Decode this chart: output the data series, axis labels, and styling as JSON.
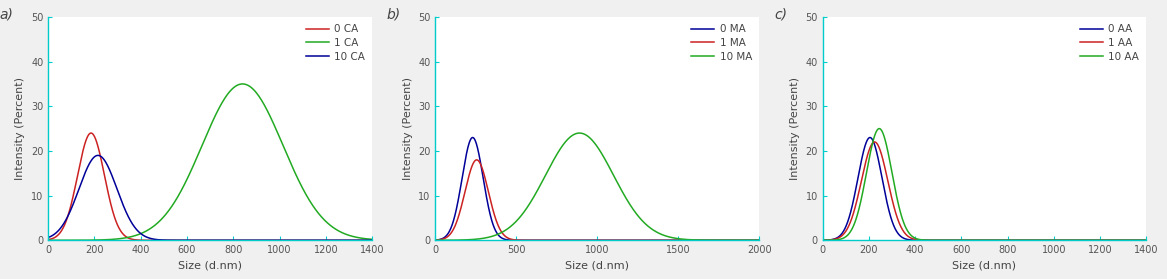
{
  "panels": [
    {
      "label": "a)",
      "xlim": [
        0,
        1400
      ],
      "xticks": [
        0,
        200,
        400,
        600,
        800,
        1000,
        1200,
        1400
      ],
      "xlabel": "Size (d.nm)",
      "ylabel": "Intensity (Percent)",
      "ylim": [
        0,
        50
      ],
      "yticks": [
        0,
        10,
        20,
        30,
        40,
        50
      ],
      "legend_labels": [
        "0 CA",
        "1 CA",
        "10 CA"
      ],
      "curves": [
        {
          "color": "#cc2222",
          "peak": 185,
          "sigma": 58,
          "amplitude": 24
        },
        {
          "color": "#22aa22",
          "peak": 840,
          "sigma": 175,
          "amplitude": 35
        },
        {
          "color": "#000099",
          "peak": 215,
          "sigma": 82,
          "amplitude": 19
        }
      ]
    },
    {
      "label": "b)",
      "xlim": [
        0,
        2000
      ],
      "xticks": [
        0,
        500,
        1000,
        1500,
        2000
      ],
      "xlabel": "Size (d.nm)",
      "ylabel": "Intensity (Percent)",
      "ylim": [
        0,
        50
      ],
      "yticks": [
        0,
        10,
        20,
        30,
        40,
        50
      ],
      "legend_labels": [
        "0 MA",
        "1 MA",
        "10 MA"
      ],
      "curves": [
        {
          "color": "#000099",
          "peak": 230,
          "sigma": 65,
          "amplitude": 23
        },
        {
          "color": "#cc2222",
          "peak": 255,
          "sigma": 72,
          "amplitude": 18
        },
        {
          "color": "#22aa22",
          "peak": 890,
          "sigma": 210,
          "amplitude": 24
        }
      ]
    },
    {
      "label": "c)",
      "xlim": [
        0,
        1400
      ],
      "xticks": [
        0,
        200,
        400,
        600,
        800,
        1000,
        1200,
        1400
      ],
      "xlabel": "Size (d.nm)",
      "ylabel": "Intensity (Percent)",
      "ylim": [
        0,
        50
      ],
      "yticks": [
        0,
        10,
        20,
        30,
        40,
        50
      ],
      "legend_labels": [
        "0 AA",
        "1 AA",
        "10 AA"
      ],
      "curves": [
        {
          "color": "#000099",
          "peak": 205,
          "sigma": 52,
          "amplitude": 23
        },
        {
          "color": "#cc2222",
          "peak": 225,
          "sigma": 57,
          "amplitude": 22
        },
        {
          "color": "#22aa22",
          "peak": 245,
          "sigma": 55,
          "amplitude": 25
        }
      ]
    }
  ],
  "fig_bg_color": "#f0f0f0",
  "plot_bg_color": "#ffffff",
  "axis_color": "#00cccc",
  "tick_color": "#555555",
  "label_color": "#444444",
  "spine_linewidth": 1.0,
  "line_linewidth": 1.1,
  "tick_labelsize": 7,
  "axis_labelsize": 8,
  "legend_fontsize": 7.5,
  "panel_label_fontsize": 10
}
